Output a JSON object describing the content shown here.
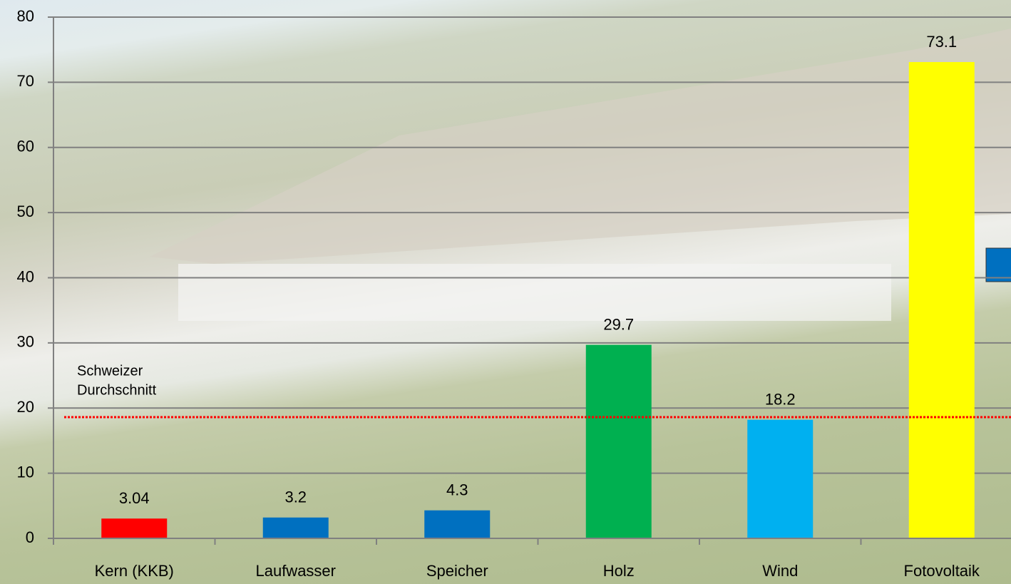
{
  "chart_data": {
    "type": "bar",
    "categories": [
      "Kern (KKB)",
      "Laufwasser",
      "Speicher",
      "Holz",
      "Wind",
      "Fotovoltaik"
    ],
    "values": [
      3.04,
      3.2,
      4.3,
      29.7,
      18.2,
      73.1
    ],
    "colors": [
      "#ff0000",
      "#0070c0",
      "#0070c0",
      "#00b050",
      "#00b0f0",
      "#ffff00"
    ],
    "ylim": [
      0,
      80
    ],
    "yticks": [
      0,
      10,
      20,
      30,
      40,
      50,
      60,
      70,
      80
    ],
    "grid": true,
    "reference": {
      "value": 18.6,
      "color": "#ff0000",
      "label": [
        "Schweizer",
        "Durchschnitt"
      ]
    }
  }
}
